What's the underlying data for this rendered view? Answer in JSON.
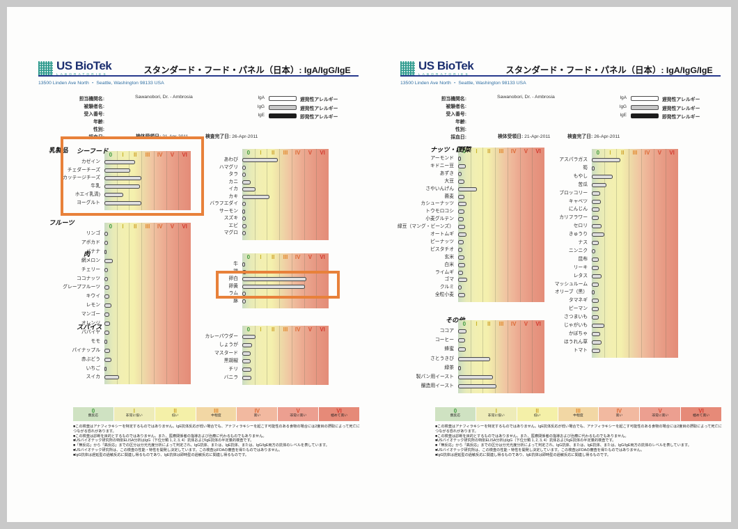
{
  "document": {
    "kind": "scanned allergy test report",
    "pages": 2
  },
  "header": {
    "logo_text": "US BioTek",
    "logo_sub": "LABORATORIES",
    "title": "スタンダード・フード・パネル（日本）: IgA/IgG/IgE",
    "address": "13500 Linden Ave North ・ Seattle, Washington 98133 USA",
    "fields": [
      {
        "label": "担当機関名:",
        "value": "Sawanobori, Dr. - Ambrosia"
      },
      {
        "label": "被験者名:",
        "value": ""
      },
      {
        "label": "受入番号:",
        "value": ""
      },
      {
        "label": "年齢:",
        "value": ""
      },
      {
        "label": "性別:",
        "value": ""
      },
      {
        "label": "採血日:",
        "value": ""
      }
    ],
    "received": {
      "label": "検体受領日:",
      "value": "21-Apr-2011"
    },
    "completed": {
      "label": "検査完了日:",
      "value": "26-Apr-2011"
    },
    "legend": [
      {
        "name": "IgA",
        "swatch": "outline",
        "label": "遅発性アレルギー"
      },
      {
        "name": "IgG",
        "swatch": "gray",
        "label": "遅発性アレルギー"
      },
      {
        "name": "IgE",
        "swatch": "black",
        "label": "即発性アレルギー"
      }
    ]
  },
  "scale_ticks": [
    "0",
    "I",
    "II",
    "III",
    "IV",
    "V",
    "VI"
  ],
  "tick_colors": [
    "#3f9b3f",
    "#c9b52c",
    "#cfa32d",
    "#e2882e",
    "#dd6a35",
    "#d94f35",
    "#d43c31"
  ],
  "bottom_scale": {
    "labels": [
      "無反応",
      "非常に低い",
      "低い",
      "中程度",
      "高い",
      "非常に高い",
      "極めて高い"
    ],
    "colors": [
      "#cfe2c2",
      "#eeecb8",
      "#f4f0a8",
      "#f2d7a4",
      "#f2b9a0",
      "#ec9f90",
      "#e68a78"
    ]
  },
  "footnotes": [
    "■この検査はアナフィラキシーを特定するものではありません。IgE抗体反応が低い場合でも、アナフィラキシーを起こす可能性のある食物の場合には2度目の摂取によって死亡につながる恐れがあります。",
    "■この検査は診断を目的とするものではありません。また、医療関係者の指導および治療に代わるものでもありません。",
    "■USバイオテック研究所の特別ELISA分析はIgG（下位分類 1, 2, 3, 4）抗体およびIgE抗体の半定量的検査です。",
    "■「無反応」から「高反応」までの区分は分光光度分析によって判定され、IgG抗体、または、IgE抗体、または、IgG/IgE両方の抗体のレベルを表しています。",
    "■USバイオテック研究所は、この検査の性能・特性を開発し決定しています。この検査はFDAの審査を得たものではありません。",
    "■IgG抗体は遅延型の過敏反応に関連し得るものであり、IgE抗体は即時型の過敏反応に関連し得るものです。"
  ],
  "highlights": [
    {
      "page": 1,
      "name": "dairy-section-highlight",
      "color": "#e8813a"
    },
    {
      "page": 1,
      "name": "egg-rows-highlight",
      "color": "#e8813a"
    }
  ],
  "chart_data": [
    {
      "id": "dairy",
      "page": 1,
      "type": "bar",
      "title": "乳製品",
      "xticks": [
        "0",
        "I",
        "II",
        "III",
        "IV",
        "V",
        "VI"
      ],
      "xlim": [
        0,
        7
      ],
      "categories": [
        "カゼイン",
        "チェダーチーズ",
        "カッテージチーズ",
        "牛乳",
        "ホエイ乳清)",
        "ヨーグルト"
      ],
      "values": [
        2.5,
        2.1,
        3.0,
        2.9,
        1.5,
        3.0
      ]
    },
    {
      "id": "fruits",
      "page": 1,
      "type": "bar",
      "title": "フルーツ",
      "xticks": [
        "0",
        "I",
        "II",
        "III",
        "IV",
        "V",
        "VI"
      ],
      "xlim": [
        0,
        7
      ],
      "categories": [
        "リンゴ",
        "アボカド",
        "バナナ",
        "網メロン",
        "チェリー",
        "ココナッツ",
        "グレープフルーツ",
        "キウイ",
        "レモン",
        "マンゴー",
        "オレンジ",
        "パパイヤ",
        "モモ",
        "パイナップル",
        "赤ぶどう",
        "いちご",
        "スイカ"
      ],
      "values": [
        0.3,
        0.3,
        0.15,
        0.65,
        0.3,
        0.3,
        0.4,
        0.4,
        0.55,
        0.4,
        0.45,
        0.4,
        0.2,
        0.45,
        0.55,
        0.15,
        1.2
      ]
    },
    {
      "id": "seafood",
      "page": 1,
      "type": "bar",
      "title": "シーフード",
      "xticks": [
        "0",
        "I",
        "II",
        "III",
        "IV",
        "V",
        "VI"
      ],
      "xlim": [
        0,
        7
      ],
      "categories": [
        "あわび",
        "ハマグリ",
        "タラ",
        "カニ",
        "イカ",
        "カキ",
        "バラフエダイ",
        "サーモン",
        "スズキ",
        "エビ",
        "マグロ"
      ],
      "values": [
        2.9,
        0.3,
        0.3,
        0.7,
        1.1,
        2.2,
        0.3,
        0.25,
        0.3,
        0.35,
        0.3
      ]
    },
    {
      "id": "meat",
      "page": 1,
      "type": "bar",
      "title": "肉",
      "xticks": [
        "0",
        "I",
        "II",
        "III",
        "IV",
        "V",
        "VI"
      ],
      "xlim": [
        0,
        7
      ],
      "categories": [
        "牛",
        "鶏",
        "卵白",
        "卵黄",
        "ラム",
        "豚"
      ],
      "values": [
        0.25,
        0.35,
        5.2,
        5.1,
        0.3,
        0.3
      ]
    },
    {
      "id": "spices",
      "page": 1,
      "type": "bar",
      "title": "スパイス",
      "xticks": [
        "0",
        "I",
        "II",
        "III",
        "IV",
        "V",
        "VI"
      ],
      "xlim": [
        0,
        7
      ],
      "categories": [
        "カレーパウダー",
        "しょうが",
        "マスタード",
        "黒胡椒",
        "チリ",
        "バニラ"
      ],
      "values": [
        1.05,
        0.8,
        0.7,
        0.7,
        0.75,
        0.75
      ]
    },
    {
      "id": "nuts_grains",
      "page": 2,
      "type": "bar",
      "title": "ナッツ・穀物",
      "xticks": [
        "0",
        "I",
        "II",
        "III",
        "IV",
        "V",
        "VI"
      ],
      "xlim": [
        0,
        7
      ],
      "categories": [
        "アーモンド",
        "キドニー豆",
        "あずき",
        "大豆",
        "さやいんげん",
        "蕎麦",
        "カシューナッツ",
        "トウモロコシ",
        "小麦グルテン",
        "緑豆（マング・ビーンズ）",
        "オートムギ",
        "ピーナッツ",
        "ピスタチオ",
        "玄米",
        "白米",
        "ライムギ",
        "ゴマ",
        "クルミ",
        "全粒小麦"
      ],
      "values": [
        0.25,
        0.6,
        0.3,
        0.5,
        1.5,
        0.5,
        0.65,
        0.5,
        0.45,
        0.55,
        0.65,
        0.45,
        0.35,
        0.5,
        0.55,
        0.4,
        0.75,
        0.3,
        0.55
      ]
    },
    {
      "id": "others",
      "page": 2,
      "type": "bar",
      "title": "その他",
      "xticks": [
        "0",
        "I",
        "II",
        "III",
        "IV",
        "V",
        "VI"
      ],
      "xlim": [
        0,
        7
      ],
      "categories": [
        "ココア",
        "コーヒー",
        "蜂蜜",
        "さとうきび",
        "緑茶",
        "製パン用イースト",
        "醸造用イースト"
      ],
      "values": [
        0.65,
        0.55,
        0.6,
        2.6,
        0.2,
        2.8,
        3.1
      ]
    },
    {
      "id": "vegetables",
      "page": 2,
      "type": "bar",
      "title": "野菜",
      "xticks": [
        "0",
        "I",
        "II",
        "III",
        "IV",
        "V",
        "VI"
      ],
      "xlim": [
        0,
        7
      ],
      "categories": [
        "アスパラガス",
        "筍",
        "もやし",
        "苦瓜",
        "ブロッコリー",
        "キャベツ",
        "にんじん",
        "カリフラワー",
        "セロリ",
        "きゅうり",
        "ナス",
        "ニンニク",
        "昆布",
        "リーキ",
        "レタス",
        "マッシュルーム",
        "オリーブ（黒）",
        "タマネギ",
        "ピーマン",
        "さつまいも",
        "じゃがいも",
        "かぼちゃ",
        "ほうれん草",
        "トマト"
      ],
      "values": [
        2.3,
        0.25,
        1.7,
        1.2,
        0.65,
        0.75,
        0.6,
        0.55,
        0.8,
        1.0,
        0.55,
        0.3,
        0.55,
        0.55,
        0.8,
        0.55,
        0.25,
        0.55,
        0.55,
        0.55,
        1.0,
        0.65,
        0.8,
        0.7
      ]
    }
  ]
}
